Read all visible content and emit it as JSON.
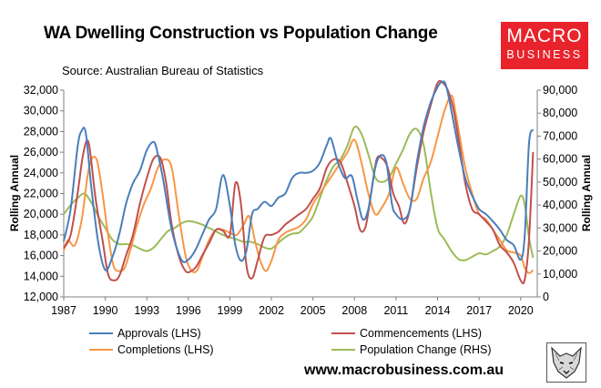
{
  "header": {
    "title": "WA Dwelling Construction vs Population Change",
    "source": "Source: Australian Bureau of Statistics"
  },
  "logo": {
    "line1": "MACRO",
    "line2": "BUSINESS",
    "color": "#e8232b"
  },
  "footer": {
    "website": "www.macrobusiness.com.au"
  },
  "chart_data": {
    "type": "line",
    "title": "WA Dwelling Construction vs Population Change",
    "xlabel": "",
    "ylabel_left": "Rolling Annual",
    "ylabel_right": "Rolling Annual",
    "ylim_left": [
      12000,
      32000
    ],
    "ylim_right": [
      0,
      90000
    ],
    "yticks_left": [
      "12,000",
      "14,000",
      "16,000",
      "18,000",
      "20,000",
      "22,000",
      "24,000",
      "26,000",
      "28,000",
      "30,000",
      "32,000"
    ],
    "yticks_right": [
      "0",
      "10,000",
      "20,000",
      "30,000",
      "40,000",
      "50,000",
      "60,000",
      "70,000",
      "80,000",
      "90,000"
    ],
    "xlim": [
      1987,
      2021.2
    ],
    "xticks": [
      "1987",
      "1990",
      "1993",
      "1996",
      "1999",
      "2002",
      "2005",
      "2008",
      "2011",
      "2014",
      "2017",
      "2020"
    ],
    "legend_position": "bottom",
    "series": [
      {
        "name": "Approvals (LHS)",
        "axis": "left",
        "color": "#4a7ebb",
        "x": [
          1987,
          1987.5,
          1988,
          1988.3,
          1988.6,
          1989,
          1989.5,
          1990,
          1990.5,
          1991,
          1991.5,
          1992,
          1992.5,
          1993,
          1993.5,
          1993.8,
          1994.2,
          1994.8,
          1995.5,
          1996,
          1996.5,
          1997,
          1997.5,
          1998,
          1998.5,
          1999,
          1999.4,
          1999.8,
          2000.2,
          2000.6,
          2001,
          2001.5,
          2002,
          2002.5,
          2003,
          2003.5,
          2004,
          2004.5,
          2005,
          2005.5,
          2006,
          2006.3,
          2006.8,
          2007.3,
          2007.8,
          2008.2,
          2008.6,
          2009,
          2009.5,
          2009.9,
          2010.3,
          2010.7,
          2011,
          2011.5,
          2012,
          2012.5,
          2013,
          2013.5,
          2014,
          2014.3,
          2014.6,
          2015,
          2015.5,
          2016,
          2016.5,
          2017,
          2017.5,
          2018,
          2018.5,
          2019,
          2019.5,
          2020,
          2020.3,
          2020.6,
          2020.9
        ],
        "y": [
          17400,
          20500,
          26500,
          28100,
          27800,
          22500,
          17200,
          14600,
          15800,
          18000,
          21000,
          23000,
          24200,
          26200,
          27000,
          25800,
          23200,
          18500,
          15600,
          15600,
          16500,
          18000,
          19500,
          20500,
          23800,
          20800,
          17000,
          15500,
          16500,
          20000,
          20500,
          21200,
          20800,
          21600,
          22000,
          23500,
          24000,
          24000,
          24200,
          25000,
          26700,
          27300,
          25000,
          23500,
          23700,
          21500,
          19500,
          20500,
          24500,
          25700,
          25000,
          21000,
          20000,
          19500,
          20500,
          25000,
          28500,
          30800,
          32300,
          32800,
          32500,
          30000,
          26500,
          23500,
          21800,
          20500,
          20000,
          19300,
          18500,
          17500,
          17000,
          15600,
          18000,
          26800,
          28200
        ]
      },
      {
        "name": "Commencements (LHS)",
        "axis": "left",
        "color": "#c0504d",
        "x": [
          1987,
          1987.5,
          1988,
          1988.4,
          1988.8,
          1989.3,
          1989.8,
          1990.2,
          1990.6,
          1991,
          1991.5,
          1992,
          1992.5,
          1993,
          1993.5,
          1994,
          1994.4,
          1994.8,
          1995.3,
          1995.8,
          1996.2,
          1996.6,
          1997,
          1997.5,
          1998,
          1998.5,
          1999,
          1999.4,
          1999.8,
          2000.2,
          2000.6,
          2001,
          2001.5,
          2002,
          2002.5,
          2003,
          2003.5,
          2004,
          2004.5,
          2005,
          2005.5,
          2006,
          2006.5,
          2007,
          2007.5,
          2008,
          2008.4,
          2008.8,
          2009.2,
          2009.6,
          2010,
          2010.4,
          2010.8,
          2011.2,
          2011.6,
          2012,
          2012.5,
          2013,
          2013.5,
          2014,
          2014.4,
          2014.8,
          2015.2,
          2015.6,
          2016,
          2016.5,
          2017,
          2017.5,
          2018,
          2018.5,
          2019,
          2019.5,
          2020,
          2020.3,
          2020.6,
          2020.9
        ],
        "y": [
          16700,
          18000,
          22000,
          25800,
          26900,
          21500,
          17500,
          14200,
          13600,
          14000,
          16000,
          18000,
          21000,
          23500,
          25400,
          25400,
          23000,
          19000,
          16000,
          14500,
          14500,
          15000,
          16000,
          17200,
          18500,
          18400,
          18000,
          23000,
          21000,
          15000,
          13800,
          15500,
          17800,
          18000,
          18300,
          19000,
          19500,
          20000,
          20500,
          21500,
          22500,
          24500,
          25300,
          25000,
          23000,
          20800,
          18500,
          18800,
          22000,
          25300,
          25400,
          24500,
          22000,
          20800,
          19100,
          20500,
          24500,
          28000,
          30500,
          32700,
          32700,
          31800,
          29800,
          26500,
          23000,
          20500,
          20000,
          19300,
          18500,
          17000,
          16300,
          15300,
          13600,
          13700,
          17500,
          26000
        ]
      },
      {
        "name": "Completions (LHS)",
        "axis": "left",
        "color": "#f79646",
        "x": [
          1987,
          1987.3,
          1987.8,
          1988.3,
          1988.7,
          1989,
          1989.4,
          1989.8,
          1990.2,
          1990.6,
          1991,
          1991.4,
          1991.8,
          1992.3,
          1992.8,
          1993.3,
          1993.8,
          1994.3,
          1994.8,
          1995.3,
          1995.8,
          1996.2,
          1996.6,
          1997,
          1997.5,
          1998,
          1998.5,
          1999,
          1999.5,
          2000,
          2000.4,
          2000.8,
          2001.2,
          2001.6,
          2002,
          2002.5,
          2003,
          2003.5,
          2004,
          2004.5,
          2005,
          2005.5,
          2006,
          2006.5,
          2007,
          2007.5,
          2008,
          2008.5,
          2009,
          2009.5,
          2010,
          2010.5,
          2011,
          2011.5,
          2012,
          2012.5,
          2013,
          2013.5,
          2014,
          2014.5,
          2015,
          2015.3,
          2015.6,
          2016,
          2016.5,
          2017,
          2017.5,
          2018,
          2018.5,
          2019,
          2019.5,
          2020,
          2020.3,
          2020.6,
          2020.9
        ],
        "y": [
          16500,
          17500,
          17000,
          19500,
          23500,
          25300,
          25200,
          22000,
          18000,
          15000,
          14500,
          14800,
          16500,
          19000,
          21000,
          22500,
          24500,
          25300,
          24500,
          20000,
          16000,
          14600,
          14500,
          15800,
          17500,
          18500,
          18500,
          18200,
          18000,
          19000,
          19800,
          17500,
          15500,
          14500,
          15500,
          17500,
          18200,
          18500,
          18800,
          19500,
          21000,
          22000,
          23000,
          24000,
          25000,
          26000,
          27200,
          25000,
          22000,
          20000,
          20700,
          22000,
          24500,
          23000,
          21500,
          21500,
          23500,
          25000,
          27500,
          30000,
          31500,
          29800,
          27500,
          24500,
          22000,
          20000,
          19500,
          18500,
          17500,
          16500,
          16300,
          16000,
          14800,
          14300,
          14600
        ]
      },
      {
        "name": "Population Change (RHS)",
        "axis": "right",
        "color": "#9bbb59",
        "x": [
          1987,
          1987.5,
          1988,
          1988.5,
          1989,
          1989.5,
          1990,
          1990.5,
          1991,
          1991.5,
          1992,
          1992.5,
          1993,
          1993.5,
          1994,
          1994.5,
          1995,
          1995.5,
          1996,
          1996.5,
          1997,
          1997.5,
          1998,
          1998.5,
          1999,
          1999.5,
          2000,
          2000.5,
          2001,
          2001.5,
          2002,
          2002.5,
          2003,
          2003.5,
          2004,
          2004.5,
          2005,
          2005.5,
          2006,
          2006.5,
          2007,
          2007.5,
          2008,
          2008.5,
          2009,
          2009.5,
          2010,
          2010.5,
          2011,
          2011.5,
          2012,
          2012.5,
          2013,
          2013.5,
          2014,
          2014.5,
          2015,
          2015.5,
          2016,
          2016.5,
          2017,
          2017.5,
          2018,
          2018.5,
          2019,
          2019.5,
          2020,
          2020.3,
          2020.6,
          2020.9
        ],
        "y": [
          36000,
          40000,
          43000,
          45000,
          41000,
          35000,
          30000,
          25000,
          23000,
          23000,
          22500,
          21000,
          20000,
          21500,
          25000,
          28500,
          30000,
          32000,
          33000,
          32500,
          31500,
          30000,
          28500,
          27000,
          26000,
          25000,
          24000,
          24000,
          23000,
          21500,
          21000,
          23500,
          26000,
          27500,
          28000,
          31000,
          35000,
          43000,
          51000,
          57000,
          60000,
          66000,
          74000,
          71000,
          62000,
          52000,
          50000,
          52000,
          58000,
          64000,
          71000,
          73000,
          66000,
          46000,
          30000,
          25000,
          20000,
          16500,
          16000,
          17500,
          19000,
          18500,
          20000,
          22000,
          27000,
          36000,
          44000,
          40000,
          26000,
          17000
        ]
      }
    ]
  }
}
